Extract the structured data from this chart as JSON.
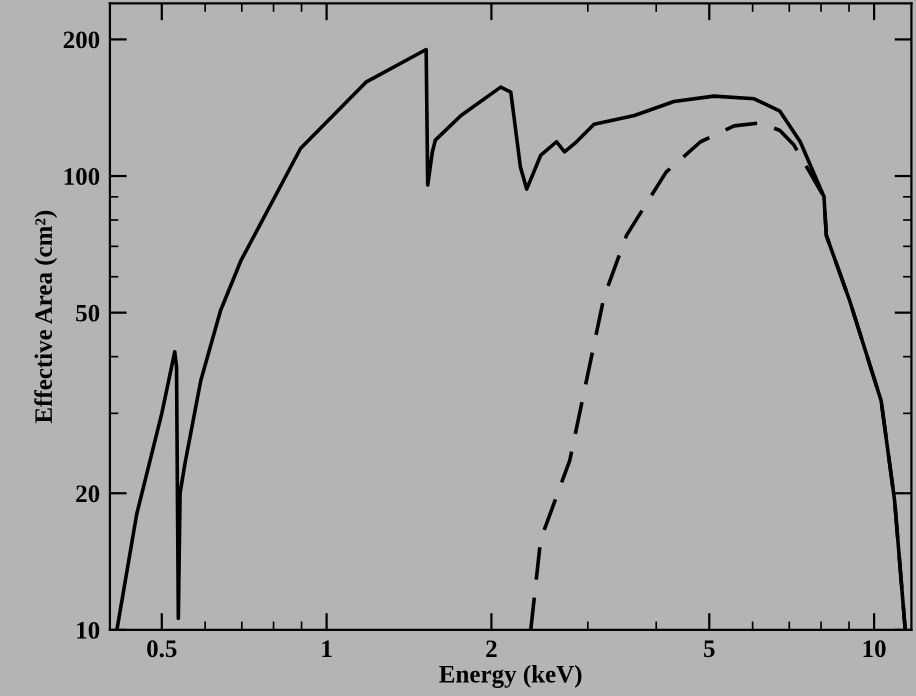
{
  "chart_data": {
    "type": "line",
    "xlabel": "Energy (keV)",
    "ylabel": "Effective Area (cm²)",
    "log": "xy",
    "grid": false,
    "legend": false,
    "marker": "none",
    "xlim": [
      0.402,
      11.7
    ],
    "ylim": [
      10,
      240
    ],
    "xticks": [
      0.5,
      1,
      2,
      5,
      10
    ],
    "yticks": [
      10,
      20,
      50,
      100,
      200
    ],
    "series": [
      {
        "color": "#000000",
        "line_style": "solid",
        "x": [
          0.414,
          0.45,
          0.5,
          0.528,
          0.532,
          0.536,
          0.54,
          0.551,
          0.589,
          0.64,
          0.697,
          0.896,
          1.18,
          1.52,
          1.53,
          1.56,
          1.58,
          1.76,
          2.08,
          2.17,
          2.26,
          2.32,
          2.46,
          2.63,
          2.72,
          2.84,
          3.08,
          3.65,
          4.31,
          5.1,
          6.04,
          6.73,
          7.33,
          8.1,
          8.18,
          9.03,
          10.3,
          10.9,
          11.4
        ],
        "values": [
          10,
          18,
          30,
          41,
          38,
          10.6,
          20,
          23.2,
          35.4,
          50.5,
          65,
          115,
          161,
          190,
          95.6,
          113,
          120,
          136,
          157,
          153,
          104.5,
          93.6,
          111,
          119,
          113,
          118,
          130,
          136,
          146,
          150,
          148,
          139,
          119,
          90,
          74,
          53,
          32,
          19.3,
          10
        ]
      },
      {
        "color": "#000000",
        "line_style": "dashed",
        "x": [
          2.36,
          2.46,
          2.78,
          3.21,
          3.53,
          4.17,
          4.82,
          5.55,
          6.2,
          6.73,
          7.14,
          8.1,
          8.18,
          9.03,
          10.3,
          10.9,
          11.4
        ],
        "values": [
          10,
          15.8,
          23.6,
          54,
          74,
          102,
          119,
          129,
          131,
          126,
          117,
          90,
          74,
          53,
          32,
          19.3,
          10
        ]
      }
    ]
  }
}
